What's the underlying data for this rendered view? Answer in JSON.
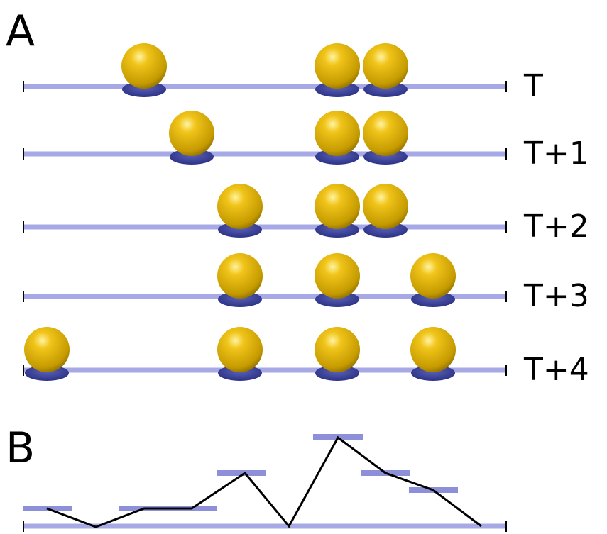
{
  "panel_a": {
    "label": "A",
    "rows": [
      "T",
      "T+1",
      "T+2",
      "T+3",
      "T+4"
    ]
  },
  "panel_b": {
    "label": "B"
  }
}
